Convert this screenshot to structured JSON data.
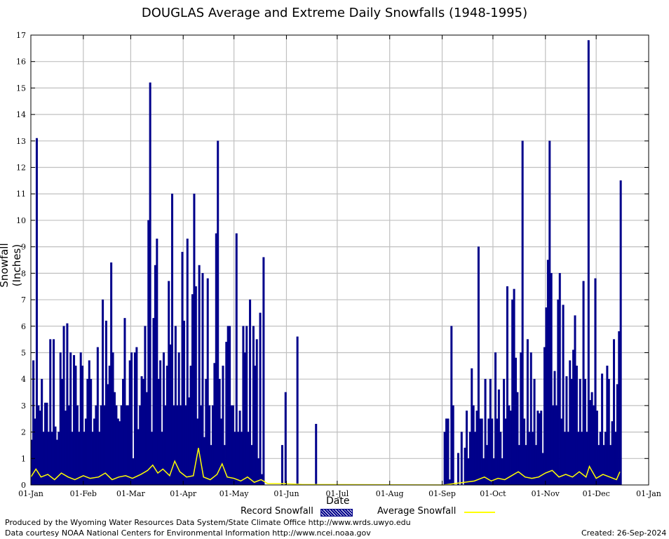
{
  "chart_data": {
    "type": "bar",
    "title": "DOUGLAS Average and Extreme Daily Snowfalls (1948-1995)",
    "xlabel": "Date",
    "ylabel": "Snowfall (Inches)",
    "ylim": [
      0,
      17
    ],
    "yticks": [
      0,
      1,
      2,
      3,
      4,
      5,
      6,
      7,
      8,
      9,
      10,
      11,
      12,
      13,
      14,
      15,
      16,
      17
    ],
    "xticks": [
      "01-Jan",
      "01-Feb",
      "01-Mar",
      "01-Apr",
      "01-May",
      "01-Jun",
      "01-Jul",
      "01-Aug",
      "01-Sep",
      "01-Oct",
      "01-Nov",
      "01-Dec",
      "01-Jan"
    ],
    "grid": true,
    "legend_position": "bottom",
    "series": [
      {
        "name": "Record Snowfall",
        "color": "#00008b",
        "style": "bars",
        "points": [
          [
            0,
            1.7
          ],
          [
            1,
            4.7
          ],
          [
            2,
            2.5
          ],
          [
            3,
            13.1
          ],
          [
            4,
            3.0
          ],
          [
            5,
            2.8
          ],
          [
            6,
            4.0
          ],
          [
            7,
            2.0
          ],
          [
            8,
            3.1
          ],
          [
            9,
            3.1
          ],
          [
            10,
            2.0
          ],
          [
            11,
            5.5
          ],
          [
            12,
            2.0
          ],
          [
            13,
            5.5
          ],
          [
            14,
            2.2
          ],
          [
            15,
            1.7
          ],
          [
            16,
            2.0
          ],
          [
            17,
            5.0
          ],
          [
            18,
            4.0
          ],
          [
            19,
            6.0
          ],
          [
            20,
            2.8
          ],
          [
            21,
            6.1
          ],
          [
            22,
            3.0
          ],
          [
            23,
            5.0
          ],
          [
            24,
            2.0
          ],
          [
            25,
            4.9
          ],
          [
            26,
            4.5
          ],
          [
            27,
            3.0
          ],
          [
            28,
            2.0
          ],
          [
            29,
            5.0
          ],
          [
            30,
            4.5
          ],
          [
            31,
            2.0
          ],
          [
            32,
            2.5
          ],
          [
            33,
            4.0
          ],
          [
            34,
            4.7
          ],
          [
            35,
            4.0
          ],
          [
            36,
            2.0
          ],
          [
            37,
            2.5
          ],
          [
            38,
            3.0
          ],
          [
            39,
            5.2
          ],
          [
            40,
            2.0
          ],
          [
            41,
            3.0
          ],
          [
            42,
            7.0
          ],
          [
            43,
            3.0
          ],
          [
            44,
            6.2
          ],
          [
            45,
            3.8
          ],
          [
            46,
            4.5
          ],
          [
            47,
            8.4
          ],
          [
            48,
            5.0
          ],
          [
            49,
            3.5
          ],
          [
            50,
            3.0
          ],
          [
            51,
            2.5
          ],
          [
            52,
            2.4
          ],
          [
            53,
            3.0
          ],
          [
            54,
            4.0
          ],
          [
            55,
            6.3
          ],
          [
            56,
            3.0
          ],
          [
            57,
            3.0
          ],
          [
            58,
            4.7
          ],
          [
            59,
            5.0
          ],
          [
            60,
            1.0
          ],
          [
            61,
            5.0
          ],
          [
            62,
            5.2
          ],
          [
            63,
            2.1
          ],
          [
            64,
            3.0
          ],
          [
            65,
            4.1
          ],
          [
            66,
            4.0
          ],
          [
            67,
            6.0
          ],
          [
            68,
            3.5
          ],
          [
            69,
            10.0
          ],
          [
            70,
            15.2
          ],
          [
            71,
            2.0
          ],
          [
            72,
            6.3
          ],
          [
            73,
            8.3
          ],
          [
            74,
            9.3
          ],
          [
            75,
            4.0
          ],
          [
            76,
            4.7
          ],
          [
            77,
            2.0
          ],
          [
            78,
            5.0
          ],
          [
            79,
            3.0
          ],
          [
            80,
            4.5
          ],
          [
            81,
            7.7
          ],
          [
            82,
            5.3
          ],
          [
            83,
            11.0
          ],
          [
            84,
            3.0
          ],
          [
            85,
            6.0
          ],
          [
            86,
            3.0
          ],
          [
            87,
            5.0
          ],
          [
            88,
            3.0
          ],
          [
            89,
            8.8
          ],
          [
            90,
            6.2
          ],
          [
            91,
            3.0
          ],
          [
            92,
            9.3
          ],
          [
            93,
            3.3
          ],
          [
            94,
            4.5
          ],
          [
            95,
            7.2
          ],
          [
            96,
            11.0
          ],
          [
            97,
            7.5
          ],
          [
            98,
            2.5
          ],
          [
            99,
            8.3
          ],
          [
            100,
            3.0
          ],
          [
            101,
            8.0
          ],
          [
            102,
            1.8
          ],
          [
            103,
            4.0
          ],
          [
            104,
            7.8
          ],
          [
            105,
            3.0
          ],
          [
            106,
            1.5
          ],
          [
            107,
            3.0
          ],
          [
            108,
            4.6
          ],
          [
            109,
            9.5
          ],
          [
            110,
            13.0
          ],
          [
            111,
            4.0
          ],
          [
            112,
            2.5
          ],
          [
            113,
            4.5
          ],
          [
            114,
            1.5
          ],
          [
            115,
            5.4
          ],
          [
            116,
            6.0
          ],
          [
            117,
            6.0
          ],
          [
            118,
            3.0
          ],
          [
            119,
            3.0
          ],
          [
            120,
            2.0
          ],
          [
            121,
            9.5
          ],
          [
            122,
            2.0
          ],
          [
            123,
            2.8
          ],
          [
            124,
            2.0
          ],
          [
            125,
            6.0
          ],
          [
            126,
            5.0
          ],
          [
            127,
            6.0
          ],
          [
            128,
            2.0
          ],
          [
            129,
            7.0
          ],
          [
            130,
            1.5
          ],
          [
            131,
            6.0
          ],
          [
            132,
            4.5
          ],
          [
            133,
            5.5
          ],
          [
            134,
            1.0
          ],
          [
            135,
            6.5
          ],
          [
            136,
            0.4
          ],
          [
            137,
            8.6
          ],
          [
            148,
            1.5
          ],
          [
            150,
            3.5
          ],
          [
            157,
            5.6
          ],
          [
            168,
            2.3
          ],
          [
            244,
            2.0
          ],
          [
            245,
            2.5
          ],
          [
            246,
            2.5
          ],
          [
            247,
            0.2
          ],
          [
            248,
            6.0
          ],
          [
            249,
            3.0
          ],
          [
            252,
            1.2
          ],
          [
            254,
            2.0
          ],
          [
            256,
            1.4
          ],
          [
            257,
            2.8
          ],
          [
            258,
            1.0
          ],
          [
            259,
            2.0
          ],
          [
            260,
            4.4
          ],
          [
            261,
            3.0
          ],
          [
            262,
            2.0
          ],
          [
            263,
            2.8
          ],
          [
            264,
            9.0
          ],
          [
            265,
            2.5
          ],
          [
            266,
            2.5
          ],
          [
            267,
            1.0
          ],
          [
            268,
            4.0
          ],
          [
            269,
            1.5
          ],
          [
            270,
            2.5
          ],
          [
            271,
            4.0
          ],
          [
            272,
            2.5
          ],
          [
            273,
            1.0
          ],
          [
            274,
            5.0
          ],
          [
            275,
            2.5
          ],
          [
            276,
            3.6
          ],
          [
            277,
            2.0
          ],
          [
            278,
            1.0
          ],
          [
            279,
            4.0
          ],
          [
            280,
            2.5
          ],
          [
            281,
            7.5
          ],
          [
            282,
            3.0
          ],
          [
            283,
            2.8
          ],
          [
            284,
            7.0
          ],
          [
            285,
            7.4
          ],
          [
            286,
            4.8
          ],
          [
            287,
            3.5
          ],
          [
            288,
            1.5
          ],
          [
            289,
            5.0
          ],
          [
            290,
            13.0
          ],
          [
            291,
            2.5
          ],
          [
            292,
            1.5
          ],
          [
            293,
            5.5
          ],
          [
            294,
            2.0
          ],
          [
            295,
            5.0
          ],
          [
            296,
            2.0
          ],
          [
            297,
            4.0
          ],
          [
            298,
            1.5
          ],
          [
            299,
            2.8
          ],
          [
            300,
            2.7
          ],
          [
            301,
            2.8
          ],
          [
            302,
            1.2
          ],
          [
            303,
            5.2
          ],
          [
            304,
            6.7
          ],
          [
            305,
            8.5
          ],
          [
            306,
            13.0
          ],
          [
            307,
            8.0
          ],
          [
            308,
            3.0
          ],
          [
            309,
            4.3
          ],
          [
            310,
            3.0
          ],
          [
            311,
            7.0
          ],
          [
            312,
            8.0
          ],
          [
            313,
            2.5
          ],
          [
            314,
            6.8
          ],
          [
            315,
            2.0
          ],
          [
            316,
            4.1
          ],
          [
            317,
            2.0
          ],
          [
            318,
            4.7
          ],
          [
            319,
            4.0
          ],
          [
            320,
            5.1
          ],
          [
            321,
            6.4
          ],
          [
            322,
            4.5
          ],
          [
            323,
            2.0
          ],
          [
            324,
            4.0
          ],
          [
            325,
            2.0
          ],
          [
            326,
            7.7
          ],
          [
            327,
            4.0
          ],
          [
            328,
            2.0
          ],
          [
            329,
            16.8
          ],
          [
            330,
            3.2
          ],
          [
            331,
            3.5
          ],
          [
            332,
            3.0
          ],
          [
            333,
            7.8
          ],
          [
            334,
            2.8
          ],
          [
            335,
            1.5
          ],
          [
            336,
            2.0
          ],
          [
            337,
            4.2
          ],
          [
            338,
            1.5
          ],
          [
            339,
            2.0
          ],
          [
            340,
            4.5
          ],
          [
            341,
            4.0
          ],
          [
            342,
            1.5
          ],
          [
            343,
            2.4
          ],
          [
            344,
            5.5
          ],
          [
            345,
            2.0
          ],
          [
            346,
            3.8
          ],
          [
            347,
            5.8
          ],
          [
            348,
            11.5
          ]
        ]
      },
      {
        "name": "Average Snowfall",
        "color": "#ffff00",
        "style": "line",
        "points": [
          [
            0,
            0.3
          ],
          [
            3,
            0.6
          ],
          [
            6,
            0.3
          ],
          [
            10,
            0.4
          ],
          [
            14,
            0.2
          ],
          [
            18,
            0.45
          ],
          [
            22,
            0.3
          ],
          [
            26,
            0.2
          ],
          [
            31,
            0.35
          ],
          [
            35,
            0.25
          ],
          [
            40,
            0.3
          ],
          [
            44,
            0.45
          ],
          [
            48,
            0.2
          ],
          [
            52,
            0.3
          ],
          [
            56,
            0.35
          ],
          [
            60,
            0.25
          ],
          [
            65,
            0.4
          ],
          [
            69,
            0.55
          ],
          [
            72,
            0.75
          ],
          [
            75,
            0.45
          ],
          [
            78,
            0.6
          ],
          [
            82,
            0.35
          ],
          [
            85,
            0.9
          ],
          [
            88,
            0.5
          ],
          [
            92,
            0.3
          ],
          [
            96,
            0.35
          ],
          [
            99,
            1.4
          ],
          [
            102,
            0.3
          ],
          [
            106,
            0.2
          ],
          [
            110,
            0.4
          ],
          [
            113,
            0.8
          ],
          [
            116,
            0.3
          ],
          [
            120,
            0.25
          ],
          [
            124,
            0.15
          ],
          [
            128,
            0.3
          ],
          [
            132,
            0.1
          ],
          [
            136,
            0.2
          ],
          [
            140,
            0.05
          ],
          [
            150,
            0.05
          ],
          [
            160,
            0.02
          ],
          [
            244,
            0.0
          ],
          [
            250,
            0.05
          ],
          [
            256,
            0.1
          ],
          [
            262,
            0.15
          ],
          [
            268,
            0.3
          ],
          [
            272,
            0.15
          ],
          [
            276,
            0.25
          ],
          [
            280,
            0.2
          ],
          [
            284,
            0.35
          ],
          [
            288,
            0.5
          ],
          [
            292,
            0.3
          ],
          [
            296,
            0.25
          ],
          [
            300,
            0.3
          ],
          [
            304,
            0.45
          ],
          [
            308,
            0.55
          ],
          [
            312,
            0.3
          ],
          [
            316,
            0.4
          ],
          [
            320,
            0.3
          ],
          [
            324,
            0.5
          ],
          [
            328,
            0.3
          ],
          [
            330,
            0.7
          ],
          [
            334,
            0.25
          ],
          [
            338,
            0.4
          ],
          [
            342,
            0.3
          ],
          [
            346,
            0.2
          ],
          [
            348,
            0.5
          ]
        ]
      }
    ]
  },
  "footer": {
    "produced_by": "Produced by the Wyoming Water Resources Data System/State Climate Office http://www.wrds.uwyo.edu",
    "courtesy": "Data courtesy NOAA National Centers for Environmental Information http://www.ncei.noaa.gov",
    "created": "Created:  26-Sep-2024"
  }
}
